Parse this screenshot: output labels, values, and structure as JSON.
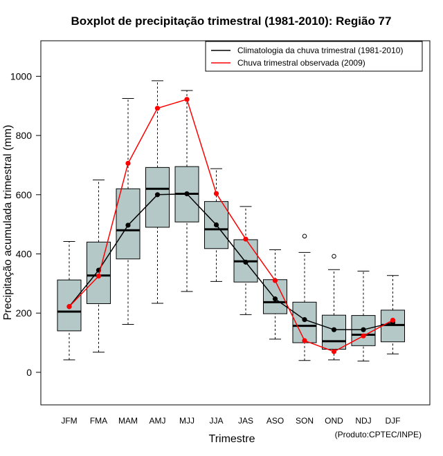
{
  "chart_data": {
    "type": "boxplot",
    "title": "Boxplot de precipitação trimestral (1981-2010): Região 77",
    "xlabel": "Trimestre",
    "ylabel": "Precipitação acumulada trimestral (mm)",
    "ylim": [
      -110,
      1120
    ],
    "yticks": [
      0,
      200,
      400,
      600,
      800,
      1000
    ],
    "categories": [
      "JFM",
      "FMA",
      "MAM",
      "AMJ",
      "MJJ",
      "JJA",
      "JAS",
      "ASO",
      "SON",
      "OND",
      "NDJ",
      "DJF"
    ],
    "boxes": [
      {
        "whisker_low": 42,
        "q1": 140,
        "median": 205,
        "q3": 312,
        "whisker_high": 442,
        "outliers": []
      },
      {
        "whisker_low": 68,
        "q1": 232,
        "median": 327,
        "q3": 440,
        "whisker_high": 650,
        "outliers": []
      },
      {
        "whisker_low": 162,
        "q1": 383,
        "median": 480,
        "q3": 620,
        "whisker_high": 925,
        "outliers": []
      },
      {
        "whisker_low": 233,
        "q1": 490,
        "median": 620,
        "q3": 692,
        "whisker_high": 985,
        "outliers": []
      },
      {
        "whisker_low": 273,
        "q1": 508,
        "median": 603,
        "q3": 695,
        "whisker_high": 952,
        "outliers": []
      },
      {
        "whisker_low": 307,
        "q1": 418,
        "median": 483,
        "q3": 577,
        "whisker_high": 688,
        "outliers": []
      },
      {
        "whisker_low": 195,
        "q1": 305,
        "median": 375,
        "q3": 448,
        "whisker_high": 560,
        "outliers": []
      },
      {
        "whisker_low": 112,
        "q1": 198,
        "median": 237,
        "q3": 313,
        "whisker_high": 414,
        "outliers": []
      },
      {
        "whisker_low": 40,
        "q1": 100,
        "median": 157,
        "q3": 237,
        "whisker_high": 405,
        "outliers": [
          460
        ]
      },
      {
        "whisker_low": 42,
        "q1": 78,
        "median": 105,
        "q3": 193,
        "whisker_high": 347,
        "outliers": [
          392
        ]
      },
      {
        "whisker_low": 38,
        "q1": 90,
        "median": 127,
        "q3": 192,
        "whisker_high": 342,
        "outliers": []
      },
      {
        "whisker_low": 62,
        "q1": 103,
        "median": 160,
        "q3": 210,
        "whisker_high": 327,
        "outliers": []
      }
    ],
    "series": [
      {
        "name": "Climatologia da chuva trimestral (1981-2010)",
        "color": "#000000",
        "values": [
          222,
          345,
          497,
          600,
          603,
          498,
          372,
          248,
          178,
          144,
          144,
          168
        ]
      },
      {
        "name": "Chuva trimestral observada (2009)",
        "color": "#ff0000",
        "values": [
          222,
          325,
          706,
          892,
          922,
          604,
          450,
          310,
          107,
          70,
          123,
          176
        ]
      }
    ],
    "box_fill": "#b4c8c8",
    "legend_position": "top-right",
    "credit": "(Produto:CPTEC/INPE)"
  }
}
